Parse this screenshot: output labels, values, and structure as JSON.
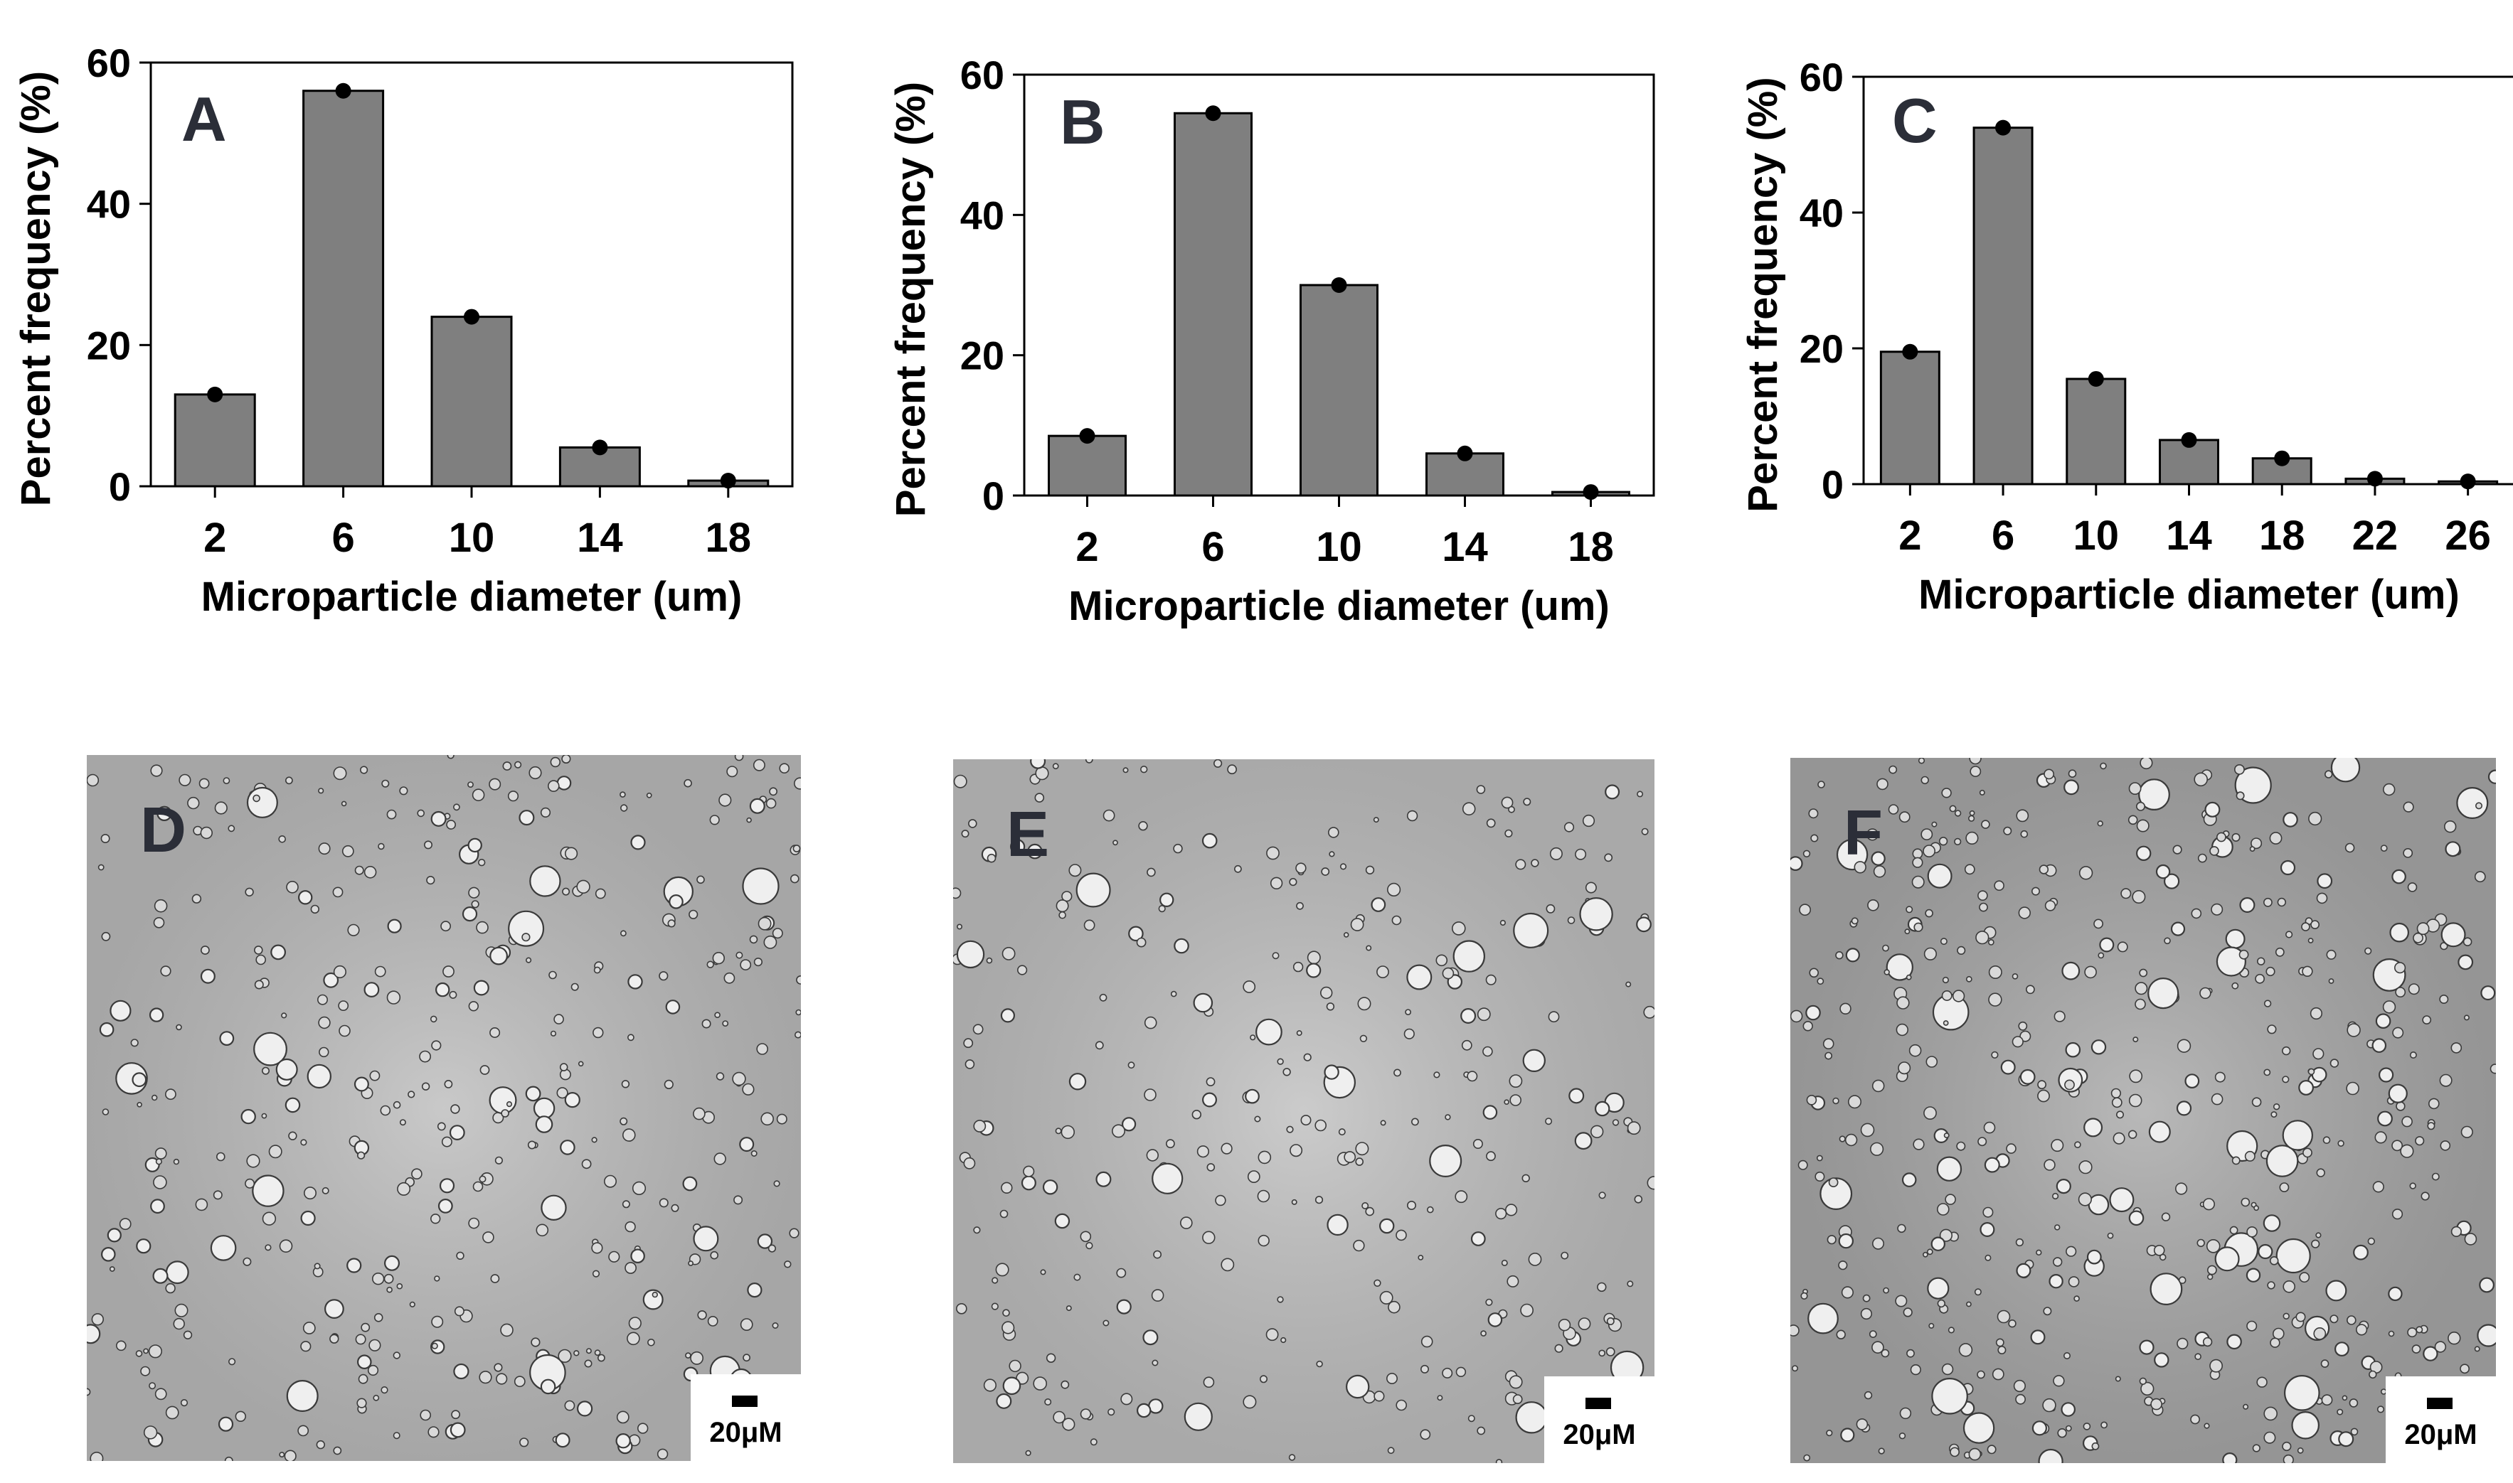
{
  "chart_data": [
    {
      "type": "bar",
      "panel_label": "A",
      "categories": [
        "2",
        "6",
        "10",
        "14",
        "18"
      ],
      "values": [
        13,
        56,
        24,
        5.5,
        0.8
      ],
      "xlabel": "Microparticle diameter (um)",
      "ylabel": "Percent frequency (%)",
      "ylim": [
        0,
        60
      ],
      "yticks": [
        "0",
        "20",
        "40",
        "60"
      ],
      "bar_color": "#7f7f7f",
      "grid": false
    },
    {
      "type": "bar",
      "panel_label": "B",
      "categories": [
        "2",
        "6",
        "10",
        "14",
        "18"
      ],
      "values": [
        8.5,
        54.5,
        30,
        6,
        0.5
      ],
      "xlabel": "Microparticle diameter (um)",
      "ylabel": "Percent  frequency (%)",
      "ylim": [
        0,
        60
      ],
      "yticks": [
        "0",
        "20",
        "40",
        "60"
      ],
      "bar_color": "#7f7f7f",
      "grid": false
    },
    {
      "type": "bar",
      "panel_label": "C",
      "categories": [
        "2",
        "6",
        "10",
        "14",
        "18",
        "22",
        "26"
      ],
      "values": [
        19.5,
        52.5,
        15.5,
        6.5,
        3.8,
        0.8,
        0.4
      ],
      "xlabel": "Microparticle diameter (um)",
      "ylabel": "Percent  frequency (%)",
      "ylim": [
        0,
        60
      ],
      "yticks": [
        "0",
        "20",
        "40",
        "60"
      ],
      "bar_color": "#7f7f7f",
      "grid": false
    }
  ],
  "micrographs": [
    {
      "label": "D",
      "scale_label": "20μM",
      "background": "#bdbdbd"
    },
    {
      "label": "E",
      "scale_label": "20μM",
      "background": "#c0c0c0"
    },
    {
      "label": "F",
      "scale_label": "20μM",
      "background": "#a9a9a9"
    }
  ]
}
